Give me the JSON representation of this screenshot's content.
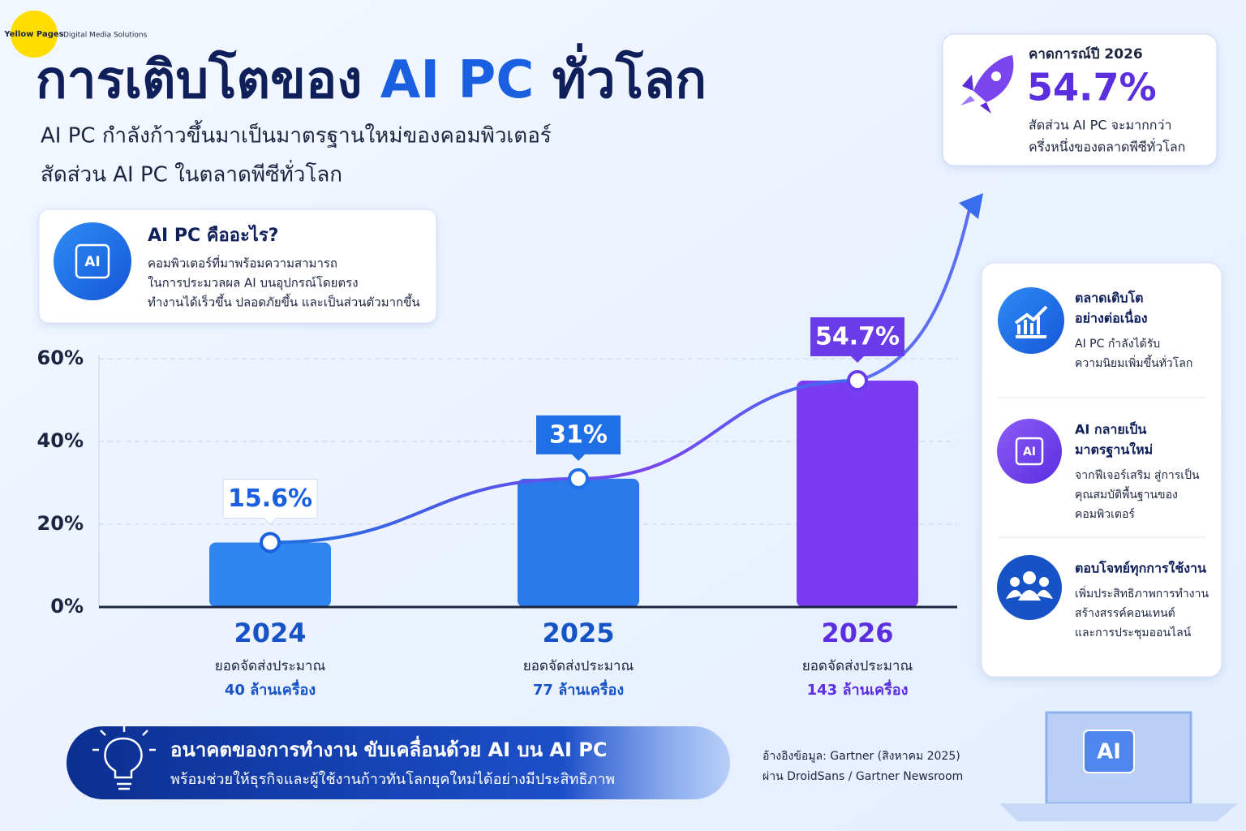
{
  "logo": {
    "name": "Yellow Pages",
    "tagline": "Digital Media Solutions"
  },
  "header": {
    "title_parts": [
      "การเติบโตของ",
      "AI PC",
      "ทั่วโลก"
    ],
    "subtitle": "AI PC กำลังก้าวขึ้นมาเป็นมาตรฐานใหม่ของคอมพิวเตอร์"
  },
  "forecast_card": {
    "label": "คาดการณ์ปี 2026",
    "value": "54.7%",
    "desc_lines": [
      "สัดส่วน AI PC จะมากกว่า",
      "ครึ่งหนึ่งของตลาดพีซีทั่วโลก"
    ]
  },
  "info_box": {
    "title": "AI PC คืออะไร?",
    "icon_text": "AI",
    "lines": [
      "คอมพิวเตอร์ที่มาพร้อมความสามารถ",
      "ในการประมวลผล AI บนอุปกรณ์โดยตรง",
      "ทำงานได้เร็วขึ้น ปลอดภัยขึ้น และเป็นส่วนตัวมากขึ้น"
    ]
  },
  "chart_data": {
    "type": "bar",
    "title": "สัดส่วน AI PC ในตลาดพีซีทั่วโลก",
    "categories": [
      "2024",
      "2025",
      "2026"
    ],
    "values": [
      15.6,
      31,
      54.7
    ],
    "value_labels": [
      "15.6%",
      "31%",
      "54.7%"
    ],
    "colors": [
      "#2f86ee",
      "#2a78ea",
      "#7a3cf0"
    ],
    "ylim": [
      0,
      60
    ],
    "yticks": [
      {
        "value": 0,
        "label": "0%"
      },
      {
        "value": 20,
        "label": "20%"
      },
      {
        "value": 40,
        "label": "40%"
      },
      {
        "value": 60,
        "label": "60%"
      }
    ],
    "grid": true,
    "shipment_caption": "ยอดจัดส่งประมาณ",
    "shipments": [
      "40 ล้านเครื่อง",
      "77 ล้านเครื่อง",
      "143 ล้านเครื่อง"
    ]
  },
  "side_panel": {
    "items": [
      {
        "title_lines": [
          "ตลาดเติบโต",
          "อย่างต่อเนื่อง"
        ],
        "desc_lines": [
          "AI PC กำลังได้รับ",
          "ความนิยมเพิ่มขึ้นทั่วโลก"
        ]
      },
      {
        "icon_text": "AI",
        "title_lines": [
          "AI กลายเป็น",
          "มาตรฐานใหม่"
        ],
        "desc_lines": [
          "จากฟีเจอร์เสริม สู่การเป็น",
          "คุณสมบัติพื้นฐานของ",
          "คอมพิวเตอร์"
        ]
      },
      {
        "title_lines": [
          "ตอบโจทย์ทุกการใช้งาน"
        ],
        "desc_lines": [
          "เพิ่มประสิทธิภาพการทำงาน",
          "สร้างสรรค์คอนเทนต์",
          "และการประชุมออนไลน์"
        ]
      }
    ]
  },
  "banner": {
    "title": "อนาคตของการทำงาน ขับเคลื่อนด้วย AI บน AI PC",
    "subtitle": "พร้อมช่วยให้ธุรกิจและผู้ใช้งานก้าวทันโลกยุคใหม่ได้อย่างมีประสิทธิภาพ"
  },
  "source": {
    "lines": [
      "อ้างอิงข้อมูล: Gartner (สิงหาคม 2025)",
      "ผ่าน DroidSans / Gartner Newsroom"
    ]
  },
  "laptop": {
    "screen_text": "AI"
  }
}
